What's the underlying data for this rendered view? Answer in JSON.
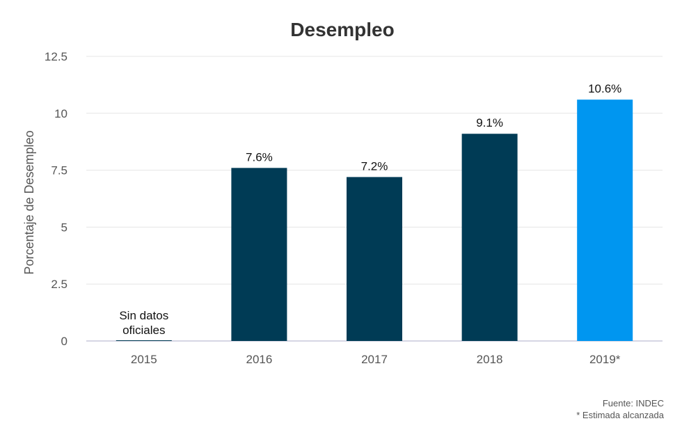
{
  "chart_data": {
    "type": "bar",
    "title": "Desempleo",
    "ylabel": "Porcentaje de Desempleo",
    "xlabel": "",
    "categories": [
      "2015",
      "2016",
      "2017",
      "2018",
      "2019*"
    ],
    "values": [
      0,
      7.6,
      7.2,
      9.1,
      10.6
    ],
    "data_labels": [
      "Sin datos oficiales",
      "7.6%",
      "7.2%",
      "9.1%",
      "10.6%"
    ],
    "ylim": [
      0,
      12.5
    ],
    "yticks": [
      0,
      2.5,
      5,
      7.5,
      10,
      12.5
    ],
    "ytick_labels": [
      "0",
      "2.5",
      "5",
      "7.5",
      "10",
      "12.5"
    ],
    "grid": true,
    "colors": [
      "#003b55",
      "#003b55",
      "#003b55",
      "#003b55",
      "#0096f0"
    ],
    "gridline_color": "#e6e6e6",
    "baseline_color": "#c8c8dc"
  },
  "footer": {
    "source": "Fuente: INDEC",
    "note": "* Estimada alcanzada"
  }
}
